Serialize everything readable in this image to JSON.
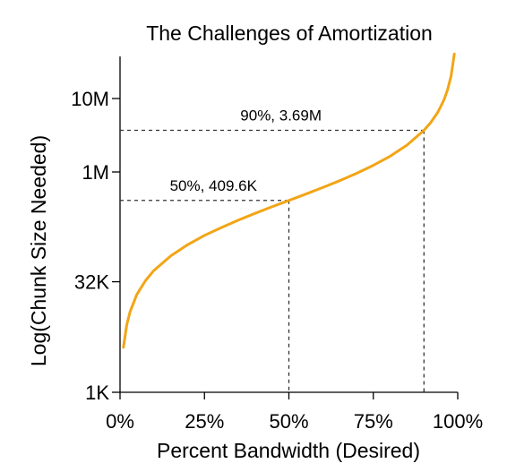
{
  "chart_data": {
    "type": "line",
    "title": "The Challenges of Amortization",
    "xlabel": "Percent Bandwidth (Desired)",
    "ylabel": "Log(Chunk Size Needed)",
    "x_ticks": [
      {
        "value": 0,
        "label": "0%"
      },
      {
        "value": 25,
        "label": "25%"
      },
      {
        "value": 50,
        "label": "50%"
      },
      {
        "value": 75,
        "label": "75%"
      },
      {
        "value": 100,
        "label": "100%"
      }
    ],
    "y_ticks": [
      {
        "value": 1000,
        "label": "1K"
      },
      {
        "value": 32000,
        "label": "32K"
      },
      {
        "value": 1000000,
        "label": "1M"
      },
      {
        "value": 10000000,
        "label": "10M"
      }
    ],
    "xlim": [
      0,
      100
    ],
    "ylim": [
      1000,
      20000000
    ],
    "y_scale": "log",
    "grid": false,
    "series": [
      {
        "color": "#f2a516",
        "x": [
          1,
          2,
          3,
          5,
          7.5,
          10,
          15,
          20,
          25,
          30,
          35,
          40,
          45,
          50,
          55,
          60,
          65,
          70,
          75,
          80,
          85,
          90,
          92,
          94,
          95,
          96,
          97,
          98,
          99
        ],
        "y": [
          4100,
          8300,
          12600,
          21500,
          33000,
          45400,
          72000,
          102000,
          137000,
          175000,
          220000,
          273000,
          335000,
          409600,
          500000,
          614000,
          760000,
          955000,
          1230000,
          1640000,
          2320000,
          3690000,
          4700000,
          6400000,
          7800000,
          9800000,
          13200000,
          20000000,
          40500000
        ]
      }
    ],
    "annotations": [
      {
        "text": "50%, 409.6K",
        "x": 50,
        "y": 409600
      },
      {
        "text": "90%, 3.69M",
        "x": 90,
        "y": 3690000
      }
    ]
  }
}
